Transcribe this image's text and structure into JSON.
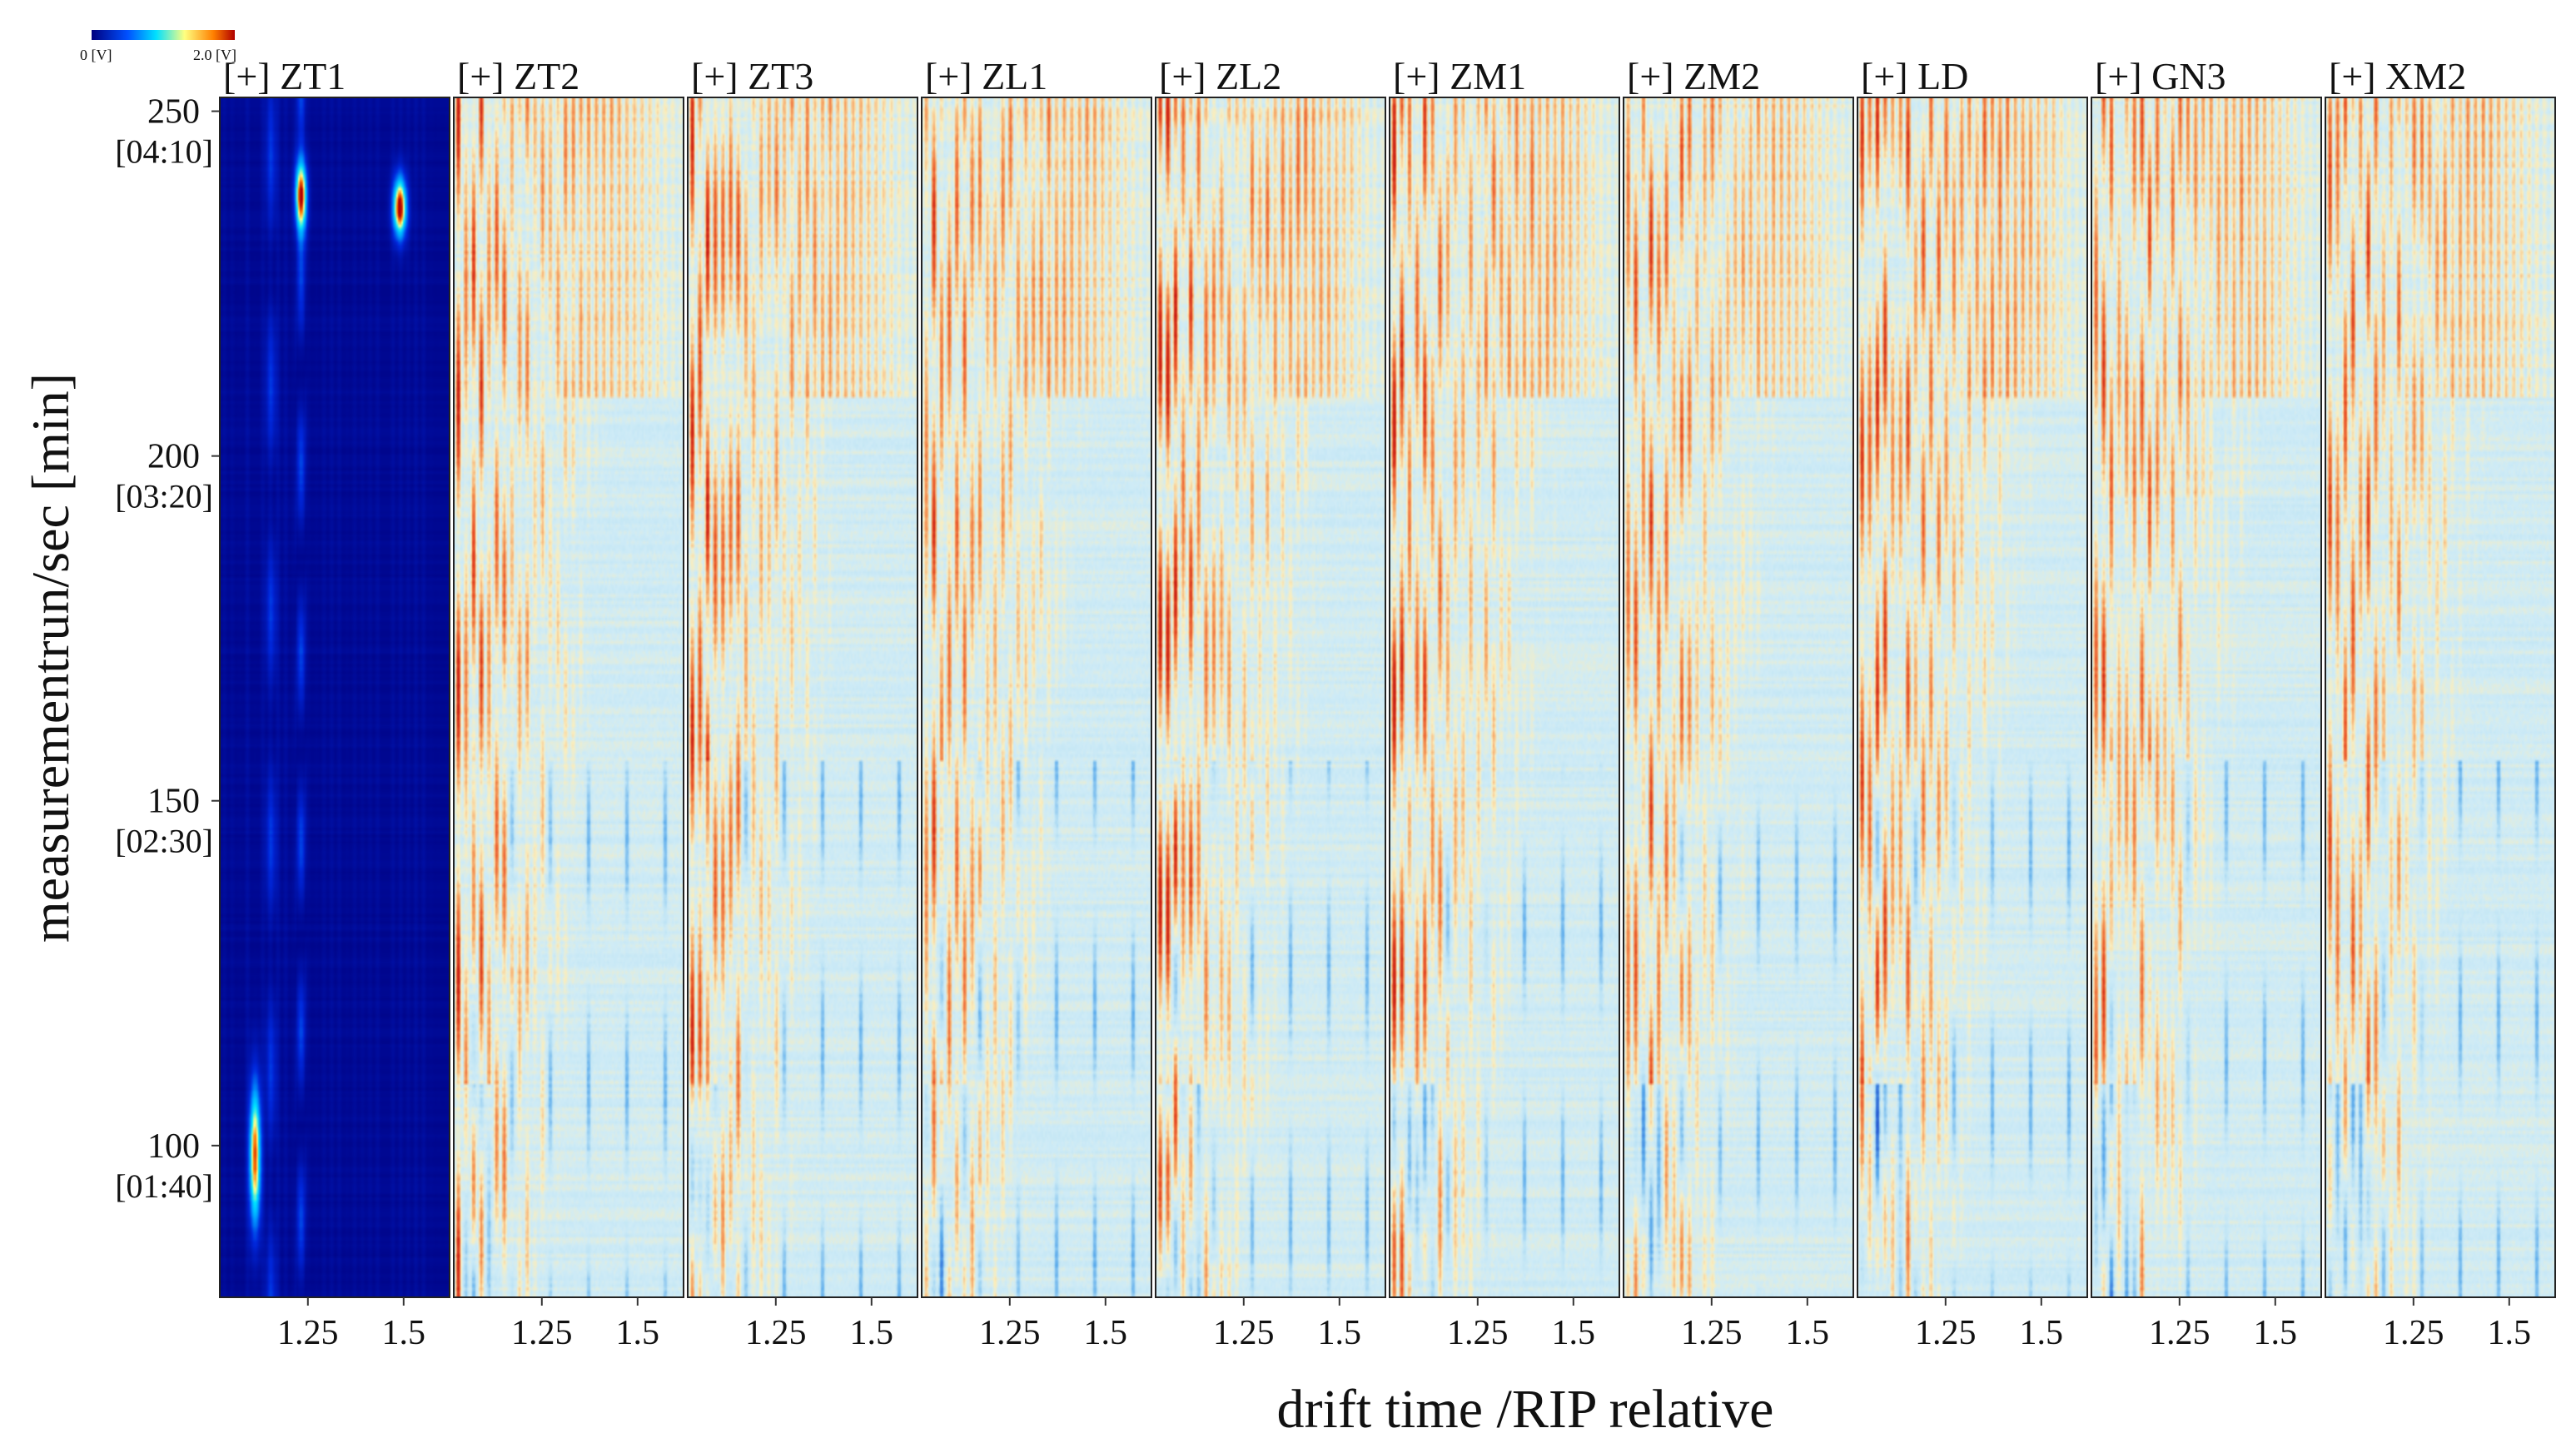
{
  "chart_data": {
    "type": "heatmap",
    "colorbar": {
      "min_label": "0 [V]",
      "max_label": "2.0 [V]",
      "colors": [
        "#00007f",
        "#0050ff",
        "#00e0ff",
        "#ffff80",
        "#ff8000",
        "#b00000"
      ]
    },
    "ylabel": "measurementrun/sec [min]",
    "xlabel": "drift time /RIP relative",
    "ylim": [
      78,
      252
    ],
    "xlim": [
      1.02,
      1.62
    ],
    "y_ticks": [
      {
        "value": 250,
        "label": "250",
        "time": "[04:10]"
      },
      {
        "value": 200,
        "label": "200",
        "time": "[03:20]"
      },
      {
        "value": 150,
        "label": "150",
        "time": "[02:30]"
      },
      {
        "value": 100,
        "label": "100",
        "time": "[01:40]"
      }
    ],
    "x_ticks": [
      {
        "value": 1.25,
        "label": "1.25"
      },
      {
        "value": 1.5,
        "label": "1.5"
      }
    ],
    "panels": [
      {
        "id": "ZT1",
        "title": "[+] ZT1",
        "mode": "absolute"
      },
      {
        "id": "ZT2",
        "title": "[+] ZT2",
        "mode": "difference"
      },
      {
        "id": "ZT3",
        "title": "[+] ZT3",
        "mode": "difference"
      },
      {
        "id": "ZL1",
        "title": "[+] ZL1",
        "mode": "difference"
      },
      {
        "id": "ZL2",
        "title": "[+] ZL2",
        "mode": "difference"
      },
      {
        "id": "ZM1",
        "title": "[+] ZM1",
        "mode": "difference"
      },
      {
        "id": "ZM2",
        "title": "[+] ZM2",
        "mode": "difference"
      },
      {
        "id": "LD",
        "title": "[+] LD",
        "mode": "difference"
      },
      {
        "id": "GN3",
        "title": "[+] GN3",
        "mode": "difference"
      },
      {
        "id": "XM2",
        "title": "[+] XM2",
        "mode": "difference"
      }
    ]
  }
}
